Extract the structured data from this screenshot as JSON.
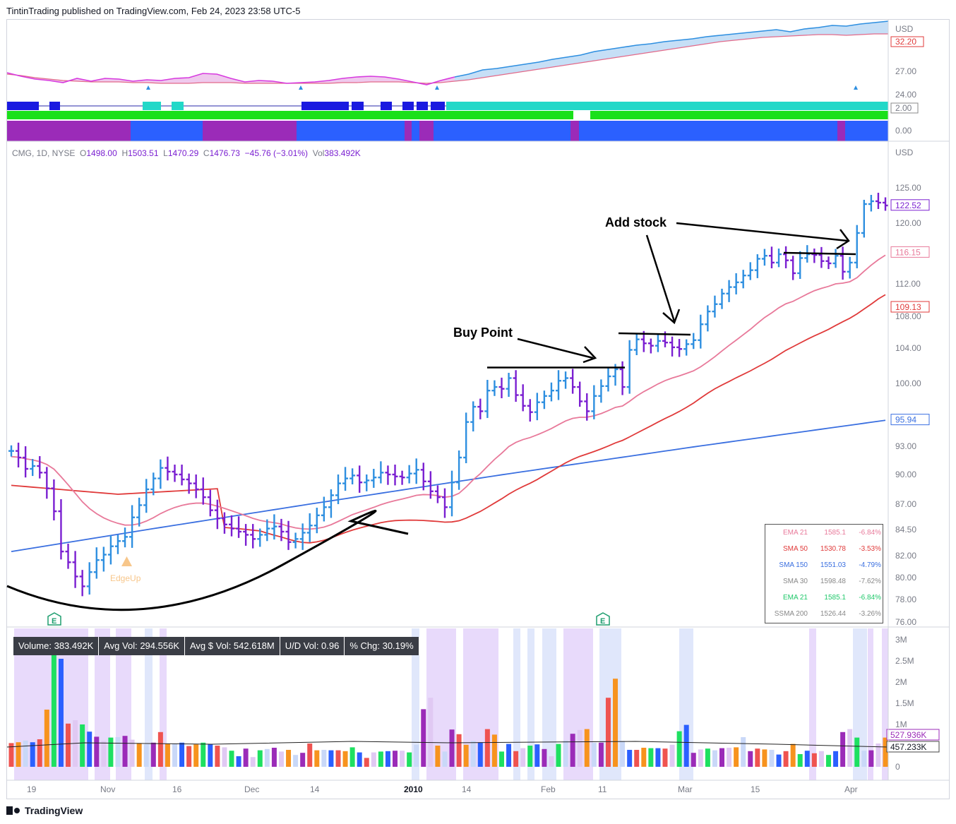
{
  "header": {
    "published": "TintinTrading published on TradingView.com, Feb 24, 2023 23:58 UTC-5"
  },
  "footer": {
    "brand": "TradingView"
  },
  "legend": {
    "symbol": "CMG, 1D, NYSE",
    "o_label": "O",
    "o": "1498.00",
    "h_label": "H",
    "h": "1503.51",
    "l_label": "L",
    "l": "1470.29",
    "c_label": "C",
    "c": "1476.73",
    "chg": "−45.76 (−3.01%)",
    "vol_label": "Vol",
    "vol": "383.492K"
  },
  "volume_stats": [
    "Volume: 383.492K",
    "Avg Vol: 294.556K",
    "Avg $ Vol: 542.618M",
    "U/D Vol: 0.96",
    "% Chg: 30.19%"
  ],
  "ma_table": [
    {
      "name": "EMA 21",
      "value": "1585.1",
      "pct": "-6.84%",
      "color": "#e8799a"
    },
    {
      "name": "SMA 50",
      "value": "1530.78",
      "pct": "-3.53%",
      "color": "#e03a3a"
    },
    {
      "name": "SMA 150",
      "value": "1551.03",
      "pct": "-4.79%",
      "color": "#3a6fe0"
    },
    {
      "name": "SMA 30",
      "value": "1598.48",
      "pct": "-7.62%",
      "color": "#888888"
    },
    {
      "name": "EMA 21",
      "value": "1585.1",
      "pct": "-6.84%",
      "color": "#1fc86a"
    },
    {
      "name": "SSMA 200",
      "value": "1526.44",
      "pct": "-3.26%",
      "color": "#888888"
    }
  ],
  "annotations": {
    "buy_point": "Buy Point",
    "add_stock": "Add stock",
    "edgeup": "EdgeUp",
    "earnings": "E"
  },
  "chart_data": [
    {
      "type": "line",
      "name": "relative-strength-panel",
      "unit_label": "USD",
      "yticks": [
        "27.00",
        "24.00"
      ],
      "price_tag": "32.20",
      "y_range": [
        22.5,
        34.5
      ],
      "series": [
        {
          "values": [
            26.7,
            26.2,
            25.8,
            25.6,
            25.3,
            25.9,
            25.5,
            25.9,
            25.8,
            25.5,
            25.7,
            25.6,
            25.9,
            26.0,
            26.6,
            26.5,
            25.9,
            25.4,
            25.6,
            25.5,
            25.2,
            25.3,
            25.4,
            25.6,
            25.9,
            26.1,
            26.2,
            26.1,
            25.8,
            25.4,
            25.0,
            25.6,
            26.1,
            26.5,
            27.1,
            27.3,
            27.6,
            27.9,
            28.2,
            28.6,
            28.9,
            29.2,
            29.7,
            30.0,
            30.3,
            30.6,
            30.8,
            31.1,
            31.3,
            31.5,
            31.8,
            32.0,
            32.2,
            32.4,
            32.6,
            32.8,
            32.5,
            32.9,
            33.1,
            33.4,
            33.3,
            33.6,
            33.8,
            34.0
          ]
        },
        {
          "values": [
            26.5,
            26.3,
            26.0,
            25.8,
            25.6,
            25.5,
            25.4,
            25.4,
            25.4,
            25.3,
            25.3,
            25.2,
            25.2,
            25.2,
            25.3,
            25.3,
            25.3,
            25.2,
            25.2,
            25.2,
            25.2,
            25.2,
            25.2,
            25.2,
            25.3,
            25.3,
            25.4,
            25.4,
            25.4,
            25.3,
            25.2,
            25.3,
            25.5,
            25.7,
            26.0,
            26.3,
            26.6,
            26.9,
            27.2,
            27.5,
            27.8,
            28.1,
            28.4,
            28.7,
            29.0,
            29.3,
            29.6,
            29.9,
            30.2,
            30.5,
            30.8,
            31.1,
            31.3,
            31.5,
            31.7,
            31.8,
            31.9,
            32.0,
            32.1,
            32.1,
            32.0,
            32.1,
            32.2,
            32.2
          ]
        }
      ]
    },
    {
      "type": "bar",
      "name": "price-ohlc",
      "unit_label": "USD",
      "x_labels": [
        "19",
        "Nov",
        "16",
        "Dec",
        "14",
        "2010",
        "14",
        "Feb",
        "11",
        "Mar",
        "15",
        "Apr"
      ],
      "yticks": [
        "125.00",
        "120.00",
        "112.00",
        "108.00",
        "104.00",
        "100.00",
        "93.00",
        "90.00",
        "87.00",
        "84.50",
        "82.00",
        "80.00",
        "78.00",
        "76.00"
      ],
      "price_tags": [
        {
          "label": "122.52",
          "value": 122.52,
          "color": "#7a1fd1"
        },
        {
          "label": "116.15",
          "value": 116.15,
          "color": "#e8799a"
        },
        {
          "label": "109.13",
          "value": 109.13,
          "color": "#e03a3a"
        },
        {
          "label": "95.94",
          "value": 95.94,
          "color": "#3a6fe0"
        }
      ],
      "buy_line": 101.8,
      "add_line_1": 106.2,
      "add_line_2": 117.0,
      "ohlc_close": [
        92.5,
        91.8,
        90.6,
        90.9,
        90.2,
        88.6,
        86.3,
        82.4,
        81.4,
        80.1,
        79.2,
        80.5,
        81.6,
        82.1,
        82.9,
        83.4,
        83.8,
        85.7,
        86.9,
        88.5,
        89.6,
        90.7,
        90.3,
        90.0,
        89.5,
        89.1,
        88.5,
        87.7,
        86.4,
        85.6,
        85.0,
        84.6,
        84.3,
        84.0,
        83.6,
        84.0,
        84.6,
        84.8,
        84.3,
        83.3,
        83.6,
        84.2,
        84.9,
        85.9,
        86.7,
        87.9,
        89.1,
        89.6,
        89.9,
        89.2,
        89.4,
        89.7,
        90.2,
        90.0,
        89.8,
        89.7,
        90.1,
        90.5,
        89.3,
        88.3,
        87.7,
        86.7,
        89.2,
        91.8,
        95.7,
        97.4,
        96.9,
        99.2,
        99.6,
        99.4,
        100.6,
        98.7,
        97.5,
        96.8,
        97.9,
        98.6,
        99.2,
        100.3,
        100.6,
        99.6,
        98.0,
        96.9,
        98.6,
        99.7,
        100.8,
        101.6,
        99.6,
        103.8,
        105.1,
        104.6,
        104.3,
        104.9,
        104.7,
        104.1,
        103.9,
        104.5,
        105.0,
        107.0,
        108.6,
        109.5,
        110.8,
        111.6,
        112.2,
        113.1,
        113.8,
        115.3,
        115.7,
        114.8,
        115.9,
        115.1,
        113.4,
        115.4,
        115.9,
        115.8,
        115.0,
        114.7,
        115.7,
        113.6,
        114.8,
        118.7,
        122.7,
        123.1,
        122.9,
        122.5
      ],
      "ohlc_colors_note": "blue=up trend bars, purple=down trend bars"
    },
    {
      "type": "bar",
      "name": "volume",
      "yticks": [
        "3M",
        "2.5M",
        "2M",
        "1.5M",
        "1M",
        "0"
      ],
      "y_range": [
        0,
        3000000
      ],
      "tags": [
        {
          "label": "527.936K",
          "value": 527936
        },
        {
          "label": "457.233K",
          "value": 457233
        }
      ]
    }
  ]
}
